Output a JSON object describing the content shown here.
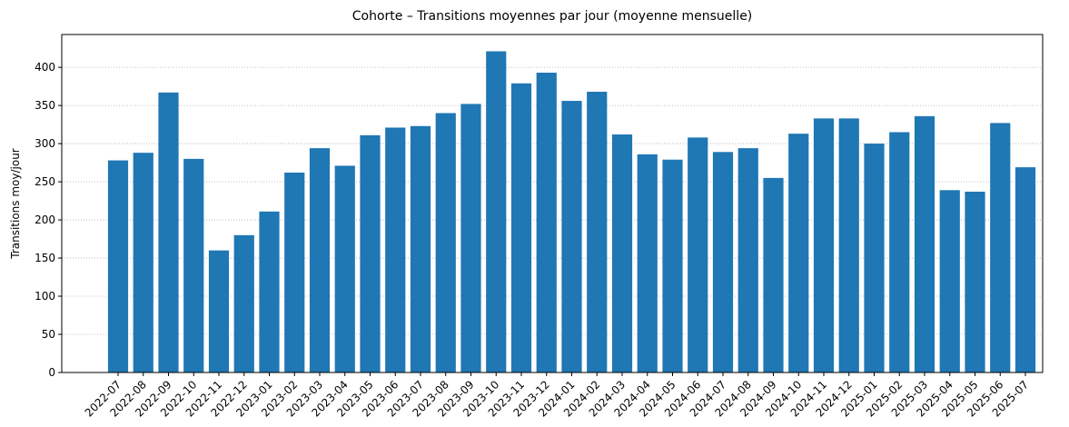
{
  "chart_data": {
    "type": "bar",
    "title": "Cohorte – Transitions moyennes par jour (moyenne mensuelle)",
    "y_label": "Transitions moy/jour",
    "categories": [
      "2022-07",
      "2022-08",
      "2022-09",
      "2022-10",
      "2022-11",
      "2022-12",
      "2023-01",
      "2023-02",
      "2023-03",
      "2023-04",
      "2023-05",
      "2023-06",
      "2023-07",
      "2023-08",
      "2023-09",
      "2023-10",
      "2023-11",
      "2023-12",
      "2024-01",
      "2024-02",
      "2024-03",
      "2024-04",
      "2024-05",
      "2024-06",
      "2024-07",
      "2024-08",
      "2024-09",
      "2024-10",
      "2024-11",
      "2024-12",
      "2025-01",
      "2025-02",
      "2025-03",
      "2025-04",
      "2025-05",
      "2025-06",
      "2025-07"
    ],
    "values": [
      278,
      288,
      367,
      280,
      160,
      180,
      211,
      262,
      294,
      271,
      311,
      321,
      323,
      340,
      352,
      421,
      379,
      393,
      356,
      368,
      312,
      286,
      279,
      308,
      289,
      294,
      255,
      313,
      333,
      333,
      300,
      315,
      336,
      239,
      237,
      327,
      269
    ],
    "color": "#1f77b4",
    "ylim": [
      0,
      443
    ],
    "yticks": [
      0,
      50,
      100,
      150,
      200,
      250,
      300,
      350,
      400
    ],
    "grid": true
  }
}
